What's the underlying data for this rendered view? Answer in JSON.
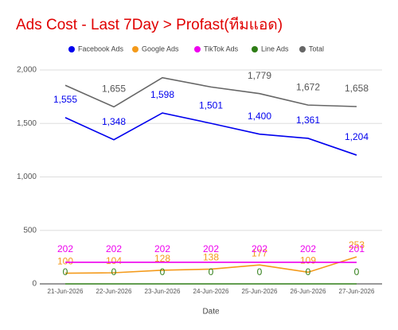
{
  "chart_data": {
    "type": "line",
    "title": "Ads Cost - Last 7Day > Profast(ทีมแอด)",
    "x_label": "Date",
    "categories": [
      "21-Jun-2026",
      "22-Jun-2026",
      "23-Jun-2026",
      "24-Jun-2026",
      "25-Jun-2026",
      "26-Jun-2026",
      "27-Jun-2026"
    ],
    "series": [
      {
        "name": "Facebook Ads",
        "color": "#0000ee",
        "values": [
          1555,
          1348,
          1598,
          1501,
          1400,
          1361,
          1204
        ],
        "value_labels": [
          "1,555",
          "1,348",
          "1,598",
          "1,501",
          "1,400",
          "1,361",
          "1,204"
        ]
      },
      {
        "name": "Google Ads",
        "color": "#f49a1a",
        "values": [
          100,
          104,
          128,
          138,
          177,
          109,
          253
        ]
      },
      {
        "name": "TikTok Ads",
        "color": "#ee00ee",
        "values": [
          202,
          202,
          202,
          202,
          202,
          202,
          201
        ]
      },
      {
        "name": "Line Ads",
        "color": "#2e7d16",
        "values": [
          0,
          0,
          0,
          0,
          0,
          0,
          0
        ]
      },
      {
        "name": "Total",
        "color": "#666666",
        "values": [
          1857,
          1655,
          1928,
          1841,
          1779,
          1672,
          1658
        ],
        "value_labels": [
          null,
          "1,655",
          null,
          null,
          "1,779",
          "1,672",
          "1,658"
        ]
      }
    ],
    "ylim": [
      0,
      2000
    ],
    "yticks": [
      0,
      500,
      {
        "value": 1000,
        "label": "1,000"
      },
      {
        "value": 1500,
        "label": "1,500"
      },
      {
        "value": 2000,
        "label": "2,000"
      }
    ],
    "grid": true
  }
}
